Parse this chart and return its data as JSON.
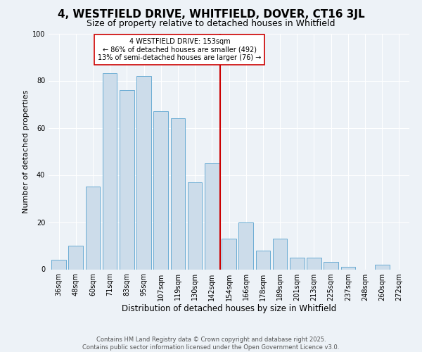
{
  "title": "4, WESTFIELD DRIVE, WHITFIELD, DOVER, CT16 3JL",
  "subtitle": "Size of property relative to detached houses in Whitfield",
  "xlabel": "Distribution of detached houses by size in Whitfield",
  "ylabel": "Number of detached properties",
  "bar_labels": [
    "36sqm",
    "48sqm",
    "60sqm",
    "71sqm",
    "83sqm",
    "95sqm",
    "107sqm",
    "119sqm",
    "130sqm",
    "142sqm",
    "154sqm",
    "166sqm",
    "178sqm",
    "189sqm",
    "201sqm",
    "213sqm",
    "225sqm",
    "237sqm",
    "248sqm",
    "260sqm",
    "272sqm"
  ],
  "bar_values": [
    4,
    10,
    35,
    83,
    76,
    82,
    67,
    64,
    37,
    45,
    13,
    20,
    8,
    13,
    5,
    5,
    3,
    1,
    0,
    2,
    0
  ],
  "bar_color": "#ccdcea",
  "bar_edgecolor": "#6aacd4",
  "vline_x_index": 10,
  "vline_color": "#cc0000",
  "annotation_text": "4 WESTFIELD DRIVE: 153sqm\n← 86% of detached houses are smaller (492)\n13% of semi-detached houses are larger (76) →",
  "annotation_box_color": "#cc0000",
  "footer_text": "Contains HM Land Registry data © Crown copyright and database right 2025.\nContains public sector information licensed under the Open Government Licence v3.0.",
  "ylim": [
    0,
    100
  ],
  "yticks": [
    0,
    20,
    40,
    60,
    80,
    100
  ],
  "background_color": "#edf2f7",
  "title_fontsize": 11,
  "subtitle_fontsize": 9,
  "tick_fontsize": 7,
  "ylabel_fontsize": 8,
  "xlabel_fontsize": 8.5,
  "footer_fontsize": 6,
  "annotation_fontsize": 7
}
